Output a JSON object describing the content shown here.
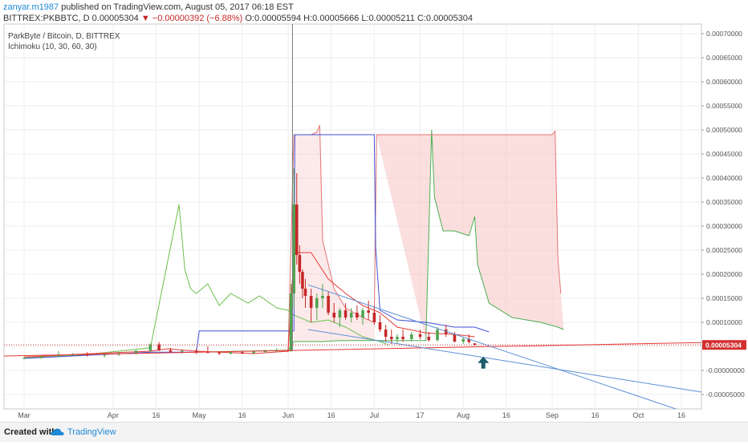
{
  "header": {
    "author": "zanyar.m1987",
    "published": "published on TradingView.com, August 05, 2017 06:18 EST",
    "symbol": "BITTREX:PKBBTC, D",
    "last": "0.00005304",
    "change": "▼ −0.00000392 (−6.88%)",
    "open": "O:0.00005594",
    "high": "H:0.00005666",
    "low": "L:0.00005211",
    "close": "C:0.00005304"
  },
  "chart_data": {
    "type": "candlestick",
    "title": "ParkByte / Bitcoin, D, BITTREX",
    "indicator": "Ichimoku (10, 30, 60, 30)",
    "y_range": [
      -8e-05,
      0.00072
    ],
    "y_ticks": [
      "0.00070000",
      "0.00065000",
      "0.00060000",
      "0.00055000",
      "0.00050000",
      "0.00045000",
      "0.00040000",
      "0.00035000",
      "0.00030000",
      "0.00025000",
      "0.00020000",
      "0.00015000",
      "0.00010000",
      "0.00005000",
      "-0.00000000",
      "-0.00005000"
    ],
    "y_tick_values": [
      0.0007,
      0.00065,
      0.0006,
      0.00055,
      0.0005,
      0.00045,
      0.0004,
      0.00035,
      0.0003,
      0.00025,
      0.0002,
      0.00015,
      0.0001,
      5e-05,
      0,
      -5e-05
    ],
    "x_ticks": [
      {
        "label": "Mar",
        "day": 0
      },
      {
        "label": "Apr",
        "day": 31
      },
      {
        "label": "16",
        "day": 46
      },
      {
        "label": "May",
        "day": 61
      },
      {
        "label": "16",
        "day": 76
      },
      {
        "label": "Jun",
        "day": 92
      },
      {
        "label": "16",
        "day": 107
      },
      {
        "label": "Jul",
        "day": 122
      },
      {
        "label": "17",
        "day": 138
      },
      {
        "label": "Aug",
        "day": 153
      },
      {
        "label": "16",
        "day": 168
      },
      {
        "label": "Sep",
        "day": 184
      },
      {
        "label": "16",
        "day": 199
      },
      {
        "label": "Oct",
        "day": 214
      },
      {
        "label": "16",
        "day": 229
      }
    ],
    "x_range_days": [
      -7,
      236
    ],
    "last_price_label": "0.00005304",
    "last_price": 5.304e-05,
    "candles": [
      [
        0,
        2.5e-05,
        2.8e-05,
        2.3e-05,
        2.6e-05
      ],
      [
        6,
        2.6e-05,
        3.2e-05,
        2.4e-05,
        2.9e-05
      ],
      [
        12,
        2.9e-05,
        4e-05,
        2.8e-05,
        3.3e-05
      ],
      [
        17,
        3.3e-05,
        3.6e-05,
        3.1e-05,
        3.4e-05
      ],
      [
        22,
        3.4e-05,
        3.8e-05,
        2.9e-05,
        3.1e-05
      ],
      [
        28,
        3.1e-05,
        3.5e-05,
        2.7e-05,
        3.3e-05
      ],
      [
        33,
        3.3e-05,
        3.8e-05,
        3e-05,
        3.6e-05
      ],
      [
        39,
        3.6e-05,
        4.2e-05,
        3.3e-05,
        4.1e-05
      ],
      [
        44,
        4.1e-05,
        5.6e-05,
        3.9e-05,
        5.4e-05
      ],
      [
        47,
        5.4e-05,
        5.9e-05,
        4e-05,
        4.2e-05
      ],
      [
        51,
        4.2e-05,
        4.7e-05,
        3.6e-05,
        3.9e-05
      ],
      [
        55,
        3.9e-05,
        4.4e-05,
        3.5e-05,
        4.1e-05
      ],
      [
        60,
        4.1e-05,
        4.5e-05,
        3.4e-05,
        3.8e-05
      ],
      [
        64,
        3.8e-05,
        5e-05,
        3.6e-05,
        3.7e-05
      ],
      [
        68,
        3.7e-05,
        4e-05,
        3.2e-05,
        3.5e-05
      ],
      [
        72,
        3.5e-05,
        4e-05,
        3.3e-05,
        3.8e-05
      ],
      [
        76,
        3.8e-05,
        4.1e-05,
        3.4e-05,
        3.6e-05
      ],
      [
        80,
        3.6e-05,
        4e-05,
        3.4e-05,
        3.9e-05
      ],
      [
        84,
        3.9e-05,
        4.3e-05,
        3.6e-05,
        4e-05
      ],
      [
        88,
        4e-05,
        4.6e-05,
        3.8e-05,
        4.2e-05
      ],
      [
        92,
        4.2e-05,
        4.25e-05,
        3.8e-05,
        4e-05
      ],
      [
        93,
        4e-05,
        0.00018,
        3.9e-05,
        0.00016
      ],
      [
        94,
        0.00016,
        0.00042,
        0.00013,
        0.000345
      ],
      [
        95,
        0.000345,
        0.00041,
        0.00022,
        0.00024
      ],
      [
        96,
        0.00024,
        0.00026,
        0.00018,
        0.000205
      ],
      [
        97,
        0.000205,
        0.00021,
        0.00015,
        0.00017
      ],
      [
        98,
        0.00017,
        0.00019,
        0.00013,
        0.000155
      ],
      [
        100,
        0.000155,
        0.00017,
        0.0001,
        0.00013
      ],
      [
        102,
        0.00013,
        0.00016,
        0.000105,
        0.00015
      ],
      [
        104,
        0.00015,
        0.00018,
        0.00013,
        0.000155
      ],
      [
        106,
        0.000155,
        0.000165,
        0.000115,
        0.00012
      ],
      [
        108,
        0.00012,
        0.00014,
        0.0001,
        0.00011
      ],
      [
        110,
        0.00011,
        0.00013,
        9e-05,
        0.000125
      ],
      [
        112,
        0.000125,
        0.00014,
        0.000105,
        0.00011
      ],
      [
        114,
        0.00011,
        0.00013,
        0.0001,
        0.00012
      ],
      [
        116,
        0.00012,
        0.000135,
        0.000105,
        0.00011
      ],
      [
        118,
        0.00011,
        0.00013,
        9.5e-05,
        0.000125
      ],
      [
        120,
        0.000125,
        0.000145,
        0.000105,
        0.00012
      ],
      [
        122,
        0.00012,
        0.000135,
        9.5e-05,
        0.0001
      ],
      [
        124,
        0.0001,
        0.000115,
        8e-05,
        8.5e-05
      ],
      [
        126,
        8.5e-05,
        9.5e-05,
        6e-05,
        7e-05
      ],
      [
        128,
        7e-05,
        8.5e-05,
        5.5e-05,
        6.5e-05
      ],
      [
        130,
        6.5e-05,
        7.5e-05,
        5.5e-05,
        7e-05
      ],
      [
        132,
        7e-05,
        8.5e-05,
        6e-05,
        6.5e-05
      ],
      [
        135,
        6.5e-05,
        8e-05,
        6e-05,
        7.5e-05
      ],
      [
        138,
        7.5e-05,
        8.5e-05,
        6.5e-05,
        7e-05
      ],
      [
        141,
        7e-05,
        8e-05,
        6e-05,
        6.3e-05
      ],
      [
        144,
        6.3e-05,
        9e-05,
        6e-05,
        8.5e-05
      ],
      [
        147,
        8.5e-05,
        9.5e-05,
        7e-05,
        7.5e-05
      ],
      [
        150,
        7.5e-05,
        8e-05,
        5.8e-05,
        6e-05
      ],
      [
        153,
        6e-05,
        7e-05,
        5.5e-05,
        6.5e-05
      ],
      [
        155,
        6.5e-05,
        7.5e-05,
        5.6e-05,
        5.9e-05
      ],
      [
        157,
        5.6e-05,
        5.7e-05,
        5.2e-05,
        5.304e-05
      ]
    ],
    "tenkan": [
      [
        0,
        2.8e-05
      ],
      [
        20,
        3.4e-05
      ],
      [
        44,
        4e-05
      ],
      [
        50,
        4.5e-05
      ],
      [
        60,
        4e-05
      ],
      [
        80,
        3.5e-05
      ],
      [
        92,
        4e-05
      ],
      [
        93,
        0.00014
      ],
      [
        94,
        0.000245
      ],
      [
        100,
        0.000245
      ],
      [
        106,
        0.00019
      ],
      [
        112,
        0.00016
      ],
      [
        118,
        0.000135
      ],
      [
        124,
        0.00012
      ],
      [
        130,
        9e-05
      ],
      [
        140,
        7.8e-05
      ],
      [
        150,
        7.5e-05
      ],
      [
        157,
        7e-05
      ]
    ],
    "kijun": [
      [
        0,
        2.5e-05
      ],
      [
        44,
        3.8e-05
      ],
      [
        60,
        3.8e-05
      ],
      [
        61,
        8.2e-05
      ],
      [
        92,
        8.2e-05
      ],
      [
        94,
        8.2e-05
      ],
      [
        94.3,
        0.00049
      ],
      [
        115,
        0.00049
      ],
      [
        122,
        0.00049
      ],
      [
        122.5,
        0.000255
      ],
      [
        124,
        0.000125
      ],
      [
        130,
        0.000105
      ],
      [
        140,
        0.0001
      ],
      [
        150,
        9e-05
      ],
      [
        157,
        9e-05
      ],
      [
        162,
        8e-05
      ]
    ],
    "chikou": [
      [
        0,
        2.6e-05
      ],
      [
        20,
        3.2e-05
      ],
      [
        44,
        4.7e-05
      ],
      [
        54,
        0.000345
      ],
      [
        56,
        0.00021
      ],
      [
        58,
        0.00017
      ],
      [
        60,
        0.00016
      ],
      [
        64,
        0.00018
      ],
      [
        68,
        0.000135
      ],
      [
        72,
        0.00016
      ],
      [
        78,
        0.00014
      ],
      [
        82,
        0.000155
      ],
      [
        88,
        0.00013
      ],
      [
        92,
        0.000125
      ],
      [
        94,
        0.000115
      ],
      [
        100,
        0.0001
      ],
      [
        106,
        0.000105
      ],
      [
        112,
        9e-05
      ],
      [
        118,
        7e-05
      ],
      [
        124,
        6e-05
      ],
      [
        127,
        5.3e-05
      ]
    ],
    "span_a": [
      [
        92,
        4.2e-05
      ],
      [
        94,
        0.00049
      ],
      [
        100,
        0.00049
      ],
      [
        102,
        0.000495
      ],
      [
        103,
        0.00051
      ],
      [
        104,
        0.00027
      ],
      [
        108,
        0.00017
      ],
      [
        112,
        0.00013
      ],
      [
        118,
        0.00011
      ],
      [
        122,
        0.0001
      ],
      [
        122.8,
        0.00049
      ],
      [
        140,
        0.00049
      ],
      [
        160,
        0.00049
      ],
      [
        184,
        0.00049
      ],
      [
        185,
        0.000497
      ],
      [
        186,
        0.00023
      ],
      [
        187,
        0.00016
      ]
    ],
    "span_b": [
      [
        60,
        3.8e-05
      ],
      [
        92,
        4.2e-05
      ],
      [
        94,
        6e-05
      ],
      [
        104,
        6e-05
      ],
      [
        110,
        6.2e-05
      ],
      [
        118,
        6.2e-05
      ],
      [
        122,
        6.2e-05
      ],
      [
        140,
        6.2e-05
      ],
      [
        142,
        0.0005
      ],
      [
        143,
        0.00036
      ],
      [
        146,
        0.00029
      ],
      [
        150,
        0.00029
      ],
      [
        155,
        0.00028
      ],
      [
        157,
        0.00032
      ],
      [
        158,
        0.00022
      ],
      [
        162,
        0.00014
      ],
      [
        170,
        0.00011
      ],
      [
        180,
        0.0001
      ],
      [
        186,
        9e-05
      ],
      [
        188,
        8.5e-05
      ]
    ],
    "trendlines": [
      {
        "color": "#e53935",
        "points": [
          [
            -7,
            3e-05
          ],
          [
            236,
            5.8e-05
          ]
        ]
      },
      {
        "color": "#5b8fd6",
        "points": [
          [
            99,
            0.000178
          ],
          [
            236,
            -9.8e-05
          ]
        ]
      },
      {
        "color": "#5b8fd6",
        "points": [
          [
            99,
            8.5e-05
          ],
          [
            236,
            -4.5e-05
          ]
        ]
      }
    ],
    "arrow_day": 160,
    "arrow_value": 1.55e-05,
    "colors": {
      "up": "#52a34f",
      "down": "#c62828",
      "tenkan": "#e53935",
      "kijun": "#3f51d6",
      "span_a": "#4caf50",
      "span_b": "#4caf50",
      "cloud": "#f7c4c4",
      "chikou": "#6bbf4d",
      "arrow": "#1d5c6b",
      "last_price": "#d32f2f"
    }
  },
  "footer": {
    "created": "Created with",
    "brand": "TradingView"
  }
}
